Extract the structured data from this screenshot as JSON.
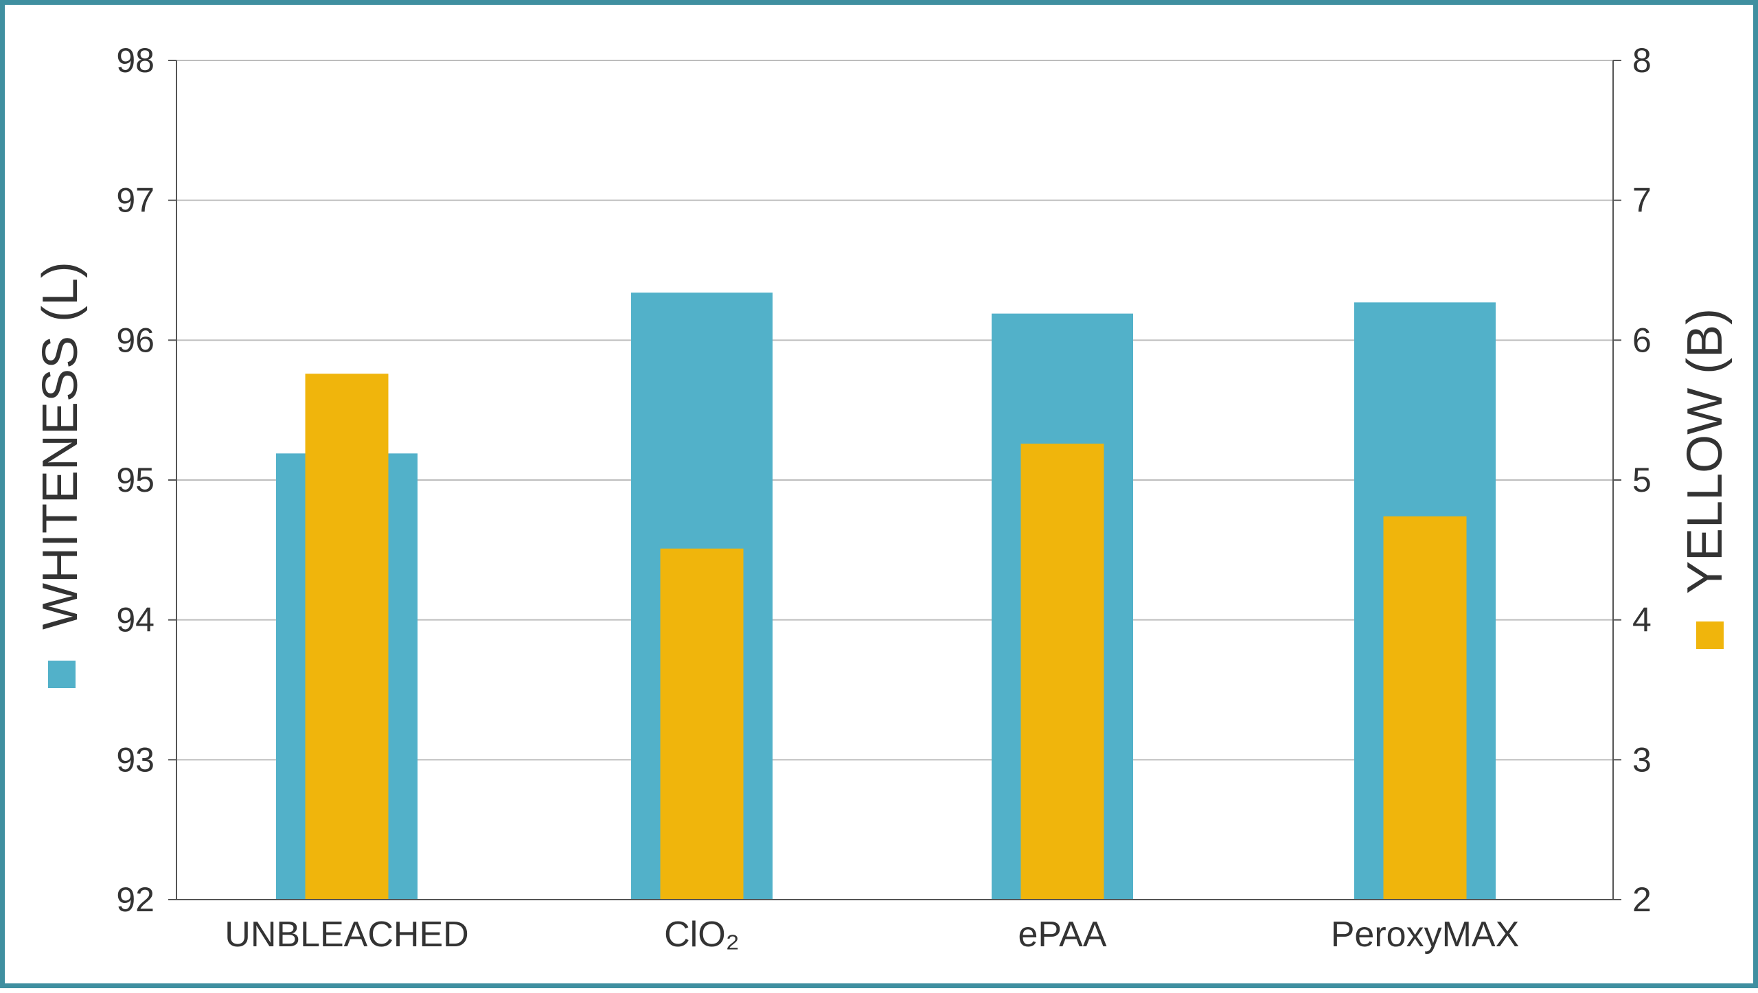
{
  "colors": {
    "whiteness": "#52b1c9",
    "yellow": "#f0b50c",
    "frame": "#3f8fa0",
    "grid": "#bdbdbd",
    "axis": "#555555"
  },
  "chart_data": {
    "type": "bar",
    "categories": [
      "UNBLEACHED",
      "ClO₂",
      "ePAA",
      "PeroxyMAX"
    ],
    "series": [
      {
        "name": "WHITENESS (L)",
        "axis": "left",
        "color": "#52b1c9",
        "values": [
          95.19,
          96.34,
          96.19,
          96.27
        ]
      },
      {
        "name": "YELLOW (B)",
        "axis": "right",
        "color": "#f0b50c",
        "values": [
          5.76,
          4.51,
          5.26,
          4.74
        ]
      }
    ],
    "ylabel": "WHITENESS (L)",
    "y2label": "YELLOW (B)",
    "ylim": [
      92,
      98
    ],
    "y2lim": [
      2,
      8
    ],
    "yticks": [
      "92",
      "93",
      "94",
      "95",
      "96",
      "97",
      "98"
    ],
    "y2ticks": [
      "2",
      "3",
      "4",
      "5",
      "6",
      "7",
      "8"
    ],
    "grid": true
  }
}
